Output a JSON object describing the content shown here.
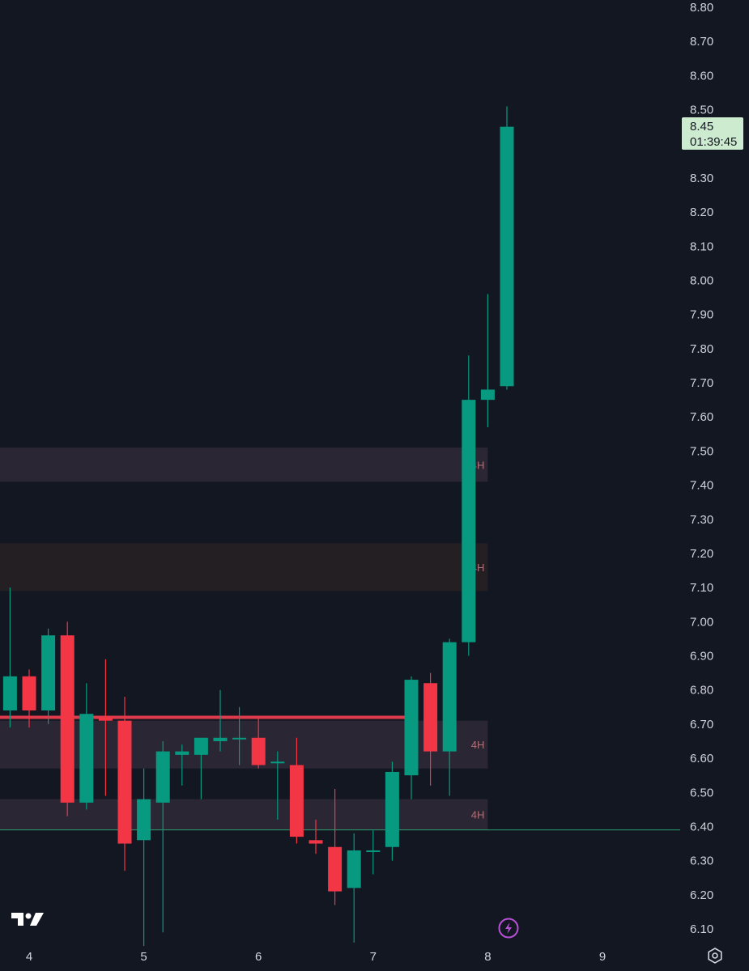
{
  "chart_data": {
    "type": "candlestick",
    "y_axis": {
      "range": [
        6.05,
        8.82
      ],
      "ticks": [
        "8.80",
        "8.70",
        "8.60",
        "8.50",
        "8.30",
        "8.20",
        "8.10",
        "8.00",
        "7.90",
        "7.80",
        "7.70",
        "7.60",
        "7.50",
        "7.40",
        "7.30",
        "7.20",
        "7.10",
        "7.00",
        "6.90",
        "6.80",
        "6.70",
        "6.60",
        "6.50",
        "6.40",
        "6.30",
        "6.20",
        "6.10"
      ],
      "position": "right"
    },
    "x_axis": {
      "ticks": [
        {
          "label": "4",
          "t": 0
        },
        {
          "label": "5",
          "t": 6
        },
        {
          "label": "6",
          "t": 12
        },
        {
          "label": "7",
          "t": 18
        },
        {
          "label": "8",
          "t": 24
        },
        {
          "label": "9",
          "t": 30
        }
      ]
    },
    "candles": [
      {
        "t": -1.0,
        "o": 6.74,
        "h": 7.1,
        "l": 6.69,
        "c": 6.84
      },
      {
        "t": 0.0,
        "o": 6.84,
        "h": 6.86,
        "l": 6.69,
        "c": 6.74
      },
      {
        "t": 1.0,
        "o": 6.74,
        "h": 6.98,
        "l": 6.7,
        "c": 6.96
      },
      {
        "t": 2.0,
        "o": 6.96,
        "h": 7.0,
        "l": 6.43,
        "c": 6.47
      },
      {
        "t": 3.0,
        "o": 6.47,
        "h": 6.82,
        "l": 6.45,
        "c": 6.73
      },
      {
        "t": 4.0,
        "o": 6.72,
        "h": 6.89,
        "l": 6.49,
        "c": 6.71
      },
      {
        "t": 5.0,
        "o": 6.71,
        "h": 6.78,
        "l": 6.27,
        "c": 6.35
      },
      {
        "t": 6.0,
        "o": 6.36,
        "h": 6.57,
        "l": 6.05,
        "c": 6.48
      },
      {
        "t": 7.0,
        "o": 6.47,
        "h": 6.65,
        "l": 6.09,
        "c": 6.62
      },
      {
        "t": 8.0,
        "o": 6.61,
        "h": 6.64,
        "l": 6.52,
        "c": 6.62
      },
      {
        "t": 9.0,
        "o": 6.61,
        "h": 6.66,
        "l": 6.48,
        "c": 6.66
      },
      {
        "t": 10.0,
        "o": 6.65,
        "h": 6.8,
        "l": 6.62,
        "c": 6.66
      },
      {
        "t": 11.0,
        "o": 6.66,
        "h": 6.75,
        "l": 6.58,
        "c": 6.66
      },
      {
        "t": 12.0,
        "o": 6.66,
        "h": 6.72,
        "l": 6.57,
        "c": 6.58
      },
      {
        "t": 13.0,
        "o": 6.59,
        "h": 6.62,
        "l": 6.42,
        "c": 6.59
      },
      {
        "t": 14.0,
        "o": 6.58,
        "h": 6.66,
        "l": 6.35,
        "c": 6.37
      },
      {
        "t": 15.0,
        "o": 6.36,
        "h": 6.42,
        "l": 6.32,
        "c": 6.35
      },
      {
        "t": 16.0,
        "o": 6.34,
        "h": 6.51,
        "l": 6.17,
        "c": 6.21
      },
      {
        "t": 17.0,
        "o": 6.22,
        "h": 6.38,
        "l": 6.06,
        "c": 6.33
      },
      {
        "t": 18.0,
        "o": 6.33,
        "h": 6.39,
        "l": 6.26,
        "c": 6.33
      },
      {
        "t": 19.0,
        "o": 6.34,
        "h": 6.59,
        "l": 6.3,
        "c": 6.56
      },
      {
        "t": 20.0,
        "o": 6.55,
        "h": 6.84,
        "l": 6.48,
        "c": 6.83
      },
      {
        "t": 21.0,
        "o": 6.82,
        "h": 6.85,
        "l": 6.52,
        "c": 6.62
      },
      {
        "t": 22.0,
        "o": 6.62,
        "h": 6.95,
        "l": 6.49,
        "c": 6.94
      },
      {
        "t": 23.0,
        "o": 6.94,
        "h": 7.78,
        "l": 6.9,
        "c": 7.65
      },
      {
        "t": 24.0,
        "o": 7.65,
        "h": 7.96,
        "l": 7.57,
        "c": 7.68
      },
      {
        "t": 25.0,
        "o": 7.69,
        "h": 8.51,
        "l": 7.68,
        "c": 8.45
      }
    ],
    "zones": [
      {
        "from": 7.41,
        "to": 7.51,
        "label": "4H",
        "color": "#2b2633"
      },
      {
        "from": 7.09,
        "to": 7.23,
        "label": "4H",
        "color": "#241f22"
      },
      {
        "from": 6.57,
        "to": 6.71,
        "label": "4H",
        "color": "#2b2633"
      },
      {
        "from": 6.39,
        "to": 6.48,
        "label": "4H",
        "color": "#2b2633"
      }
    ],
    "lines": [
      {
        "value": 6.72,
        "color": "#e03b4b",
        "t_end": 20.0,
        "width": 4
      },
      {
        "value": 6.39,
        "color": "#2a9d6f",
        "width": 1
      }
    ],
    "last_price": {
      "value": "8.45",
      "countdown": "01:39:45"
    },
    "colors": {
      "up": "#089981",
      "down": "#f23645",
      "background": "#131722",
      "axis_text": "#d1d4dc"
    }
  },
  "brand": {
    "logo": "tradingview-logo-icon"
  },
  "icons": {
    "bolt": "lightning-bolt-icon",
    "settings": "settings-icon"
  }
}
